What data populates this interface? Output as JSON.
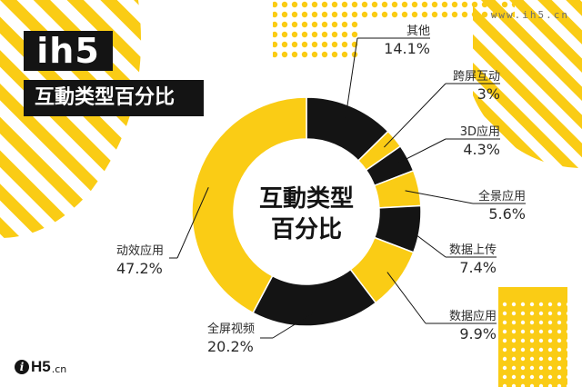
{
  "header": {
    "brand": "ih5",
    "subtitle": "互動类型百分比",
    "site_url": "www.ih5.cn"
  },
  "footer": {
    "logo_mark": "i",
    "logo_text": "H5",
    "logo_tld": ".cn"
  },
  "colors": {
    "yellow": "#FACC15",
    "black": "#141414",
    "label_text": "#2b2b2b",
    "leader_line": "#141414"
  },
  "chart_data": {
    "type": "pie",
    "donut": true,
    "center_label": [
      "互動类型",
      "百分比"
    ],
    "start_angle_deg": 0,
    "direction": "clockwise",
    "slices": [
      {
        "label": "其他",
        "value": 14.1,
        "value_label": "14.1%",
        "color": "#141414"
      },
      {
        "label": "跨屏互动",
        "value": 3,
        "value_label": "3%",
        "color": "#FACC15"
      },
      {
        "label": "3D应用",
        "value": 4.3,
        "value_label": "4.3%",
        "color": "#141414"
      },
      {
        "label": "全景应用",
        "value": 5.6,
        "value_label": "5.6%",
        "color": "#FACC15"
      },
      {
        "label": "数据上传",
        "value": 7.4,
        "value_label": "7.4%",
        "color": "#141414"
      },
      {
        "label": "数据应用",
        "value": 9.9,
        "value_label": "9.9%",
        "color": "#FACC15"
      },
      {
        "label": "全屏视频",
        "value": 20.2,
        "value_label": "20.2%",
        "color": "#141414"
      },
      {
        "label": "动效应用",
        "value": 47.2,
        "value_label": "47.2%",
        "color": "#FACC15"
      }
    ]
  }
}
